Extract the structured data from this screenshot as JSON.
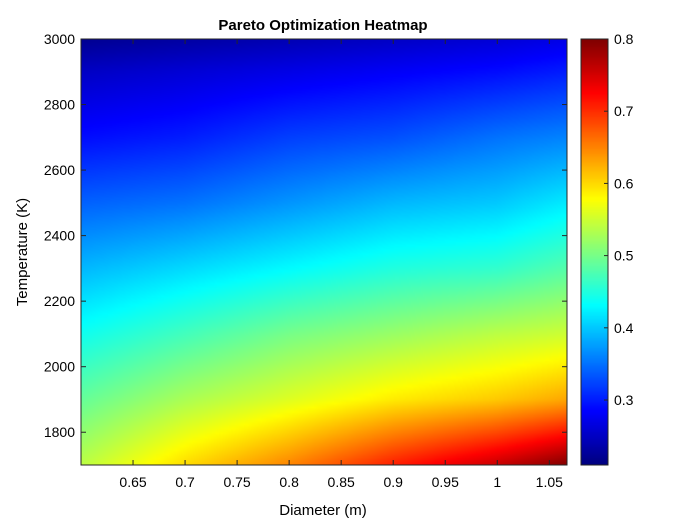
{
  "chart_data": {
    "type": "heatmap",
    "title": "Pareto Optimization Heatmap",
    "xlabel": "Diameter (m)",
    "ylabel": "Temperature (K)",
    "xlim": [
      0.6,
      1.067
    ],
    "ylim": [
      1700,
      3000
    ],
    "x_ticks": [
      0.65,
      0.7,
      0.75,
      0.8,
      0.85,
      0.9,
      0.95,
      1,
      1.05
    ],
    "x_tick_labels": [
      "0.65",
      "0.7",
      "0.75",
      "0.8",
      "0.85",
      "0.9",
      "0.95",
      "1",
      "1.05"
    ],
    "y_ticks": [
      1800,
      2000,
      2200,
      2400,
      2600,
      2800,
      3000
    ],
    "y_tick_labels": [
      "1800",
      "2000",
      "2200",
      "2400",
      "2600",
      "2800",
      "3000"
    ],
    "colormap": "jet",
    "clim": [
      0.21,
      0.8
    ],
    "colorbar_ticks": [
      0.3,
      0.4,
      0.5,
      0.6,
      0.7,
      0.8
    ],
    "colorbar_tick_labels": [
      "0.3",
      "0.4",
      "0.5",
      "0.6",
      "0.7",
      "0.8"
    ],
    "x": [
      0.6,
      0.7,
      0.8,
      0.9,
      1.0,
      1.067
    ],
    "y": [
      1700,
      1900,
      2100,
      2300,
      2500,
      2700,
      2900,
      3000
    ],
    "z": [
      [
        0.54,
        0.6,
        0.65,
        0.71,
        0.76,
        0.8
      ],
      [
        0.49,
        0.53,
        0.56,
        0.59,
        0.61,
        0.63
      ],
      [
        0.44,
        0.47,
        0.5,
        0.52,
        0.54,
        0.55
      ],
      [
        0.39,
        0.41,
        0.43,
        0.45,
        0.46,
        0.48
      ],
      [
        0.34,
        0.35,
        0.37,
        0.39,
        0.4,
        0.42
      ],
      [
        0.29,
        0.3,
        0.32,
        0.33,
        0.35,
        0.36
      ],
      [
        0.25,
        0.26,
        0.27,
        0.28,
        0.29,
        0.3
      ],
      [
        0.22,
        0.23,
        0.24,
        0.25,
        0.26,
        0.27
      ]
    ],
    "grid": false,
    "colors": {
      "axis": "#262626",
      "text": "#000000"
    }
  }
}
